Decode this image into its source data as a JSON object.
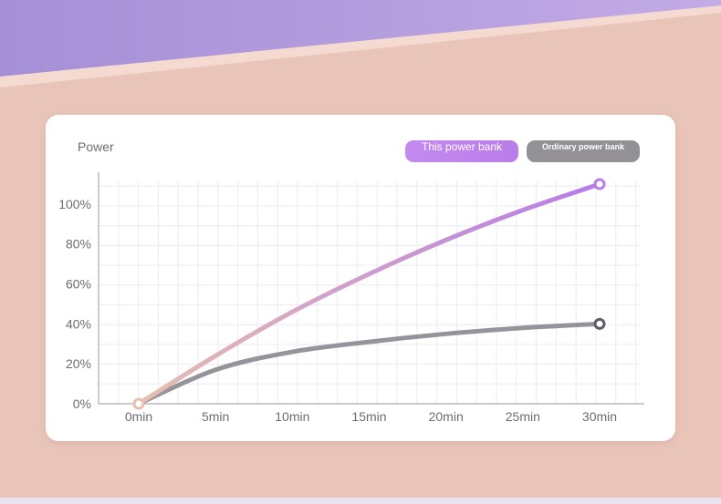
{
  "title": "Power",
  "legend": {
    "this_power_bank": "This power bank",
    "ordinary_power_bank": "Ordinary power bank"
  },
  "colors": {
    "this_power_bank_start": "#e6bfb0",
    "this_power_bank_end": "#b77ce9",
    "ordinary_power_bank": "#96939b",
    "legend_a": "#c38af0",
    "legend_b": "#939196"
  },
  "chart_data": {
    "type": "line",
    "title": "Power",
    "x": [
      "0min",
      "5min",
      "10min",
      "15min",
      "20min",
      "25min",
      "30min"
    ],
    "series": [
      {
        "name": "This power bank",
        "values": [
          0,
          24,
          46,
          65,
          82,
          97,
          110
        ]
      },
      {
        "name": "Ordinary power bank",
        "values": [
          0,
          17,
          26,
          31,
          35,
          38,
          40
        ]
      }
    ],
    "y_ticks": [
      "0%",
      "20%",
      "40%",
      "60%",
      "80%",
      "100%"
    ],
    "ylim": [
      0,
      110
    ],
    "grid": true,
    "legend_position": "top-right"
  }
}
